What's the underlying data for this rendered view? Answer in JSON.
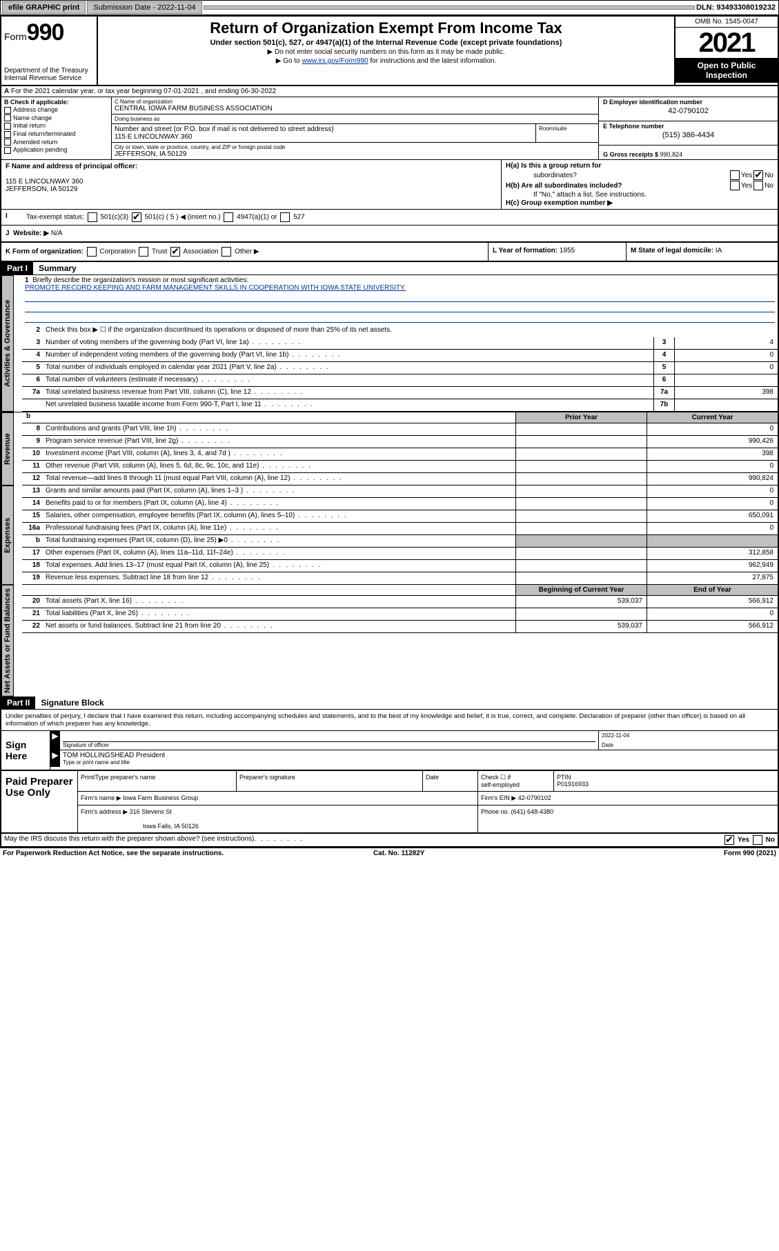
{
  "topbar": {
    "efile": "efile GRAPHIC print",
    "submission_label": "Submission Date - 2022-11-04",
    "dln": "DLN: 93493308019232"
  },
  "header": {
    "form_prefix": "Form",
    "form_number": "990",
    "dept": "Department of the Treasury",
    "irs": "Internal Revenue Service",
    "title": "Return of Organization Exempt From Income Tax",
    "sub1": "Under section 501(c), 527, or 4947(a)(1) of the Internal Revenue Code (except private foundations)",
    "sub2": "▶ Do not enter social security numbers on this form as it may be made public.",
    "sub3_prefix": "▶ Go to ",
    "sub3_link": "www.irs.gov/Form990",
    "sub3_suffix": " for instructions and the latest information.",
    "omb": "OMB No. 1545-0047",
    "year": "2021",
    "open1": "Open to Public",
    "open2": "Inspection"
  },
  "rowA": {
    "text": "For the 2021 calendar year, or tax year beginning 07-01-2021   , and ending 06-30-2022",
    "label": "A"
  },
  "colB": {
    "hdr": "B Check if applicable:",
    "opts": [
      "Address change",
      "Name change",
      "Initial return",
      "Final return/terminated",
      "Amended return",
      "Application pending"
    ]
  },
  "colC": {
    "name_lbl": "C Name of organization",
    "name": "CENTRAL IOWA FARM BUSINESS ASSOCIATION",
    "dba_lbl": "Doing business as",
    "dba": "",
    "street_lbl": "Number and street (or P.O. box if mail is not delivered to street address)",
    "street": "115 E LINCOLNWAY 360",
    "room_lbl": "Room/suite",
    "city_lbl": "City or town, state or province, country, and ZIP or foreign postal code",
    "city": "JEFFERSON, IA  50129"
  },
  "colD": {
    "ein_lbl": "D Employer identification number",
    "ein": "42-0790102",
    "phone_lbl": "E Telephone number",
    "phone": "(515) 386-4434",
    "gross_lbl": "G Gross receipts $ ",
    "gross": "990,824"
  },
  "rowF": {
    "lbl": "F Name and address of principal officer:",
    "line1": "115 E LINCOLNWAY 360",
    "line2": "JEFFERSON, IA  50129"
  },
  "rowH": {
    "ha": "H(a)  Is this a group return for",
    "ha2": "subordinates?",
    "hb": "H(b)  Are all subordinates included?",
    "hnote": "If \"No,\" attach a list. See instructions.",
    "hc": "H(c)  Group exemption number ▶",
    "yes": "Yes",
    "no": "No"
  },
  "rowI": {
    "lbl": "Tax-exempt status:",
    "opts": [
      "501(c)(3)",
      "501(c) ( 5 ) ◀ (insert no.)",
      "4947(a)(1) or",
      "527"
    ],
    "letter": "I"
  },
  "rowJ": {
    "letter": "J",
    "lbl": "Website: ▶",
    "val": "N/A"
  },
  "rowK": {
    "k": "K Form of organization:",
    "opts": [
      "Corporation",
      "Trust",
      "Association",
      "Other ▶"
    ],
    "l_lbl": "L Year of formation: ",
    "l_val": "1955",
    "m_lbl": "M State of legal domicile: ",
    "m_val": "IA"
  },
  "partI": {
    "hdr": "Part I",
    "title": "Summary"
  },
  "summary": {
    "tabs": [
      "Activities & Governance",
      "Revenue",
      "Expenses",
      "Net Assets or Fund Balances"
    ],
    "line1_lbl": "Briefly describe the organization's mission or most significant activities:",
    "line1_val": "PROMOTE RECORD KEEPING AND FARM MANAGEMENT SKILLS IN COOPERATION WITH IOWA STATE UNIVERSITY.",
    "line2": "Check this box ▶ ☐  if the organization discontinued its operations or disposed of more than 25% of its net assets.",
    "lines_gov": [
      {
        "n": "3",
        "t": "Number of voting members of the governing body (Part VI, line 1a)",
        "box": "3",
        "v": "4"
      },
      {
        "n": "4",
        "t": "Number of independent voting members of the governing body (Part VI, line 1b)",
        "box": "4",
        "v": "0"
      },
      {
        "n": "5",
        "t": "Total number of individuals employed in calendar year 2021 (Part V, line 2a)",
        "box": "5",
        "v": "0"
      },
      {
        "n": "6",
        "t": "Total number of volunteers (estimate if necessary)",
        "box": "6",
        "v": ""
      },
      {
        "n": "7a",
        "t": "Total unrelated business revenue from Part VIII, column (C), line 12",
        "box": "7a",
        "v": "398"
      },
      {
        "n": "",
        "t": "Net unrelated business taxable income from Form 990-T, Part I, line 11",
        "box": "7b",
        "v": ""
      }
    ],
    "col_hdrs": {
      "b": "b",
      "prior": "Prior Year",
      "current": "Current Year",
      "begin": "Beginning of Current Year",
      "end": "End of Year"
    },
    "lines_rev": [
      {
        "n": "8",
        "t": "Contributions and grants (Part VIII, line 1h)",
        "c1": "",
        "c2": "0"
      },
      {
        "n": "9",
        "t": "Program service revenue (Part VIII, line 2g)",
        "c1": "",
        "c2": "990,426"
      },
      {
        "n": "10",
        "t": "Investment income (Part VIII, column (A), lines 3, 4, and 7d )",
        "c1": "",
        "c2": "398"
      },
      {
        "n": "11",
        "t": "Other revenue (Part VIII, column (A), lines 5, 6d, 8c, 9c, 10c, and 11e)",
        "c1": "",
        "c2": "0"
      },
      {
        "n": "12",
        "t": "Total revenue—add lines 8 through 11 (must equal Part VIII, column (A), line 12)",
        "c1": "",
        "c2": "990,824"
      }
    ],
    "lines_exp": [
      {
        "n": "13",
        "t": "Grants and similar amounts paid (Part IX, column (A), lines 1–3 )",
        "c1": "",
        "c2": "0"
      },
      {
        "n": "14",
        "t": "Benefits paid to or for members (Part IX, column (A), line 4)",
        "c1": "",
        "c2": "0"
      },
      {
        "n": "15",
        "t": "Salaries, other compensation, employee benefits (Part IX, column (A), lines 5–10)",
        "c1": "",
        "c2": "650,091"
      },
      {
        "n": "16a",
        "t": "Professional fundraising fees (Part IX, column (A), line 11e)",
        "c1": "",
        "c2": "0"
      },
      {
        "n": "b",
        "t": "Total fundraising expenses (Part IX, column (D), line 25) ▶0",
        "c1": "shade",
        "c2": "shade"
      },
      {
        "n": "17",
        "t": "Other expenses (Part IX, column (A), lines 11a–11d, 11f–24e)",
        "c1": "",
        "c2": "312,858"
      },
      {
        "n": "18",
        "t": "Total expenses. Add lines 13–17 (must equal Part IX, column (A), line 25)",
        "c1": "",
        "c2": "962,949"
      },
      {
        "n": "19",
        "t": "Revenue less expenses. Subtract line 18 from line 12",
        "c1": "",
        "c2": "27,875"
      }
    ],
    "lines_net": [
      {
        "n": "20",
        "t": "Total assets (Part X, line 16)",
        "c1": "539,037",
        "c2": "566,912"
      },
      {
        "n": "21",
        "t": "Total liabilities (Part X, line 26)",
        "c1": "",
        "c2": "0"
      },
      {
        "n": "22",
        "t": "Net assets or fund balances. Subtract line 21 from line 20",
        "c1": "539,037",
        "c2": "566,912"
      }
    ]
  },
  "partII": {
    "hdr": "Part II",
    "title": "Signature Block"
  },
  "sig": {
    "penalty": "Under penalties of perjury, I declare that I have examined this return, including accompanying schedules and statements, and to the best of my knowledge and belief, it is true, correct, and complete. Declaration of preparer (other than officer) is based on all information of which preparer has any knowledge.",
    "sign_here": "Sign Here",
    "sig_officer": "Signature of officer",
    "date_lbl": "Date",
    "date": "2022-11-04",
    "name": "TOM HOLLINGSHEAD  President",
    "name_lbl": "Type or print name and title"
  },
  "paid": {
    "hdr": "Paid Preparer Use Only",
    "col1": "Print/Type preparer's name",
    "col2": "Preparer's signature",
    "col3": "Date",
    "col4a": "Check ☐ if",
    "col4b": "self-employed",
    "col5_lbl": "PTIN",
    "col5": "P01916933",
    "firm_name_lbl": "Firm's name    ▶",
    "firm_name": "Iowa Farm Business Group",
    "firm_ein_lbl": "Firm's EIN ▶ ",
    "firm_ein": "42-0790102",
    "firm_addr_lbl": "Firm's address ▶",
    "firm_addr1": "316 Stevens St",
    "firm_addr2": "Iowa Falls, IA  50126",
    "phone_lbl": "Phone no. ",
    "phone": "(641) 648-4380"
  },
  "footer": {
    "discuss": "May the IRS discuss this return with the preparer shown above? (see instructions)",
    "yes": "Yes",
    "no": "No",
    "pra": "For Paperwork Reduction Act Notice, see the separate instructions.",
    "cat": "Cat. No. 11282Y",
    "form": "Form 990 (2021)"
  }
}
